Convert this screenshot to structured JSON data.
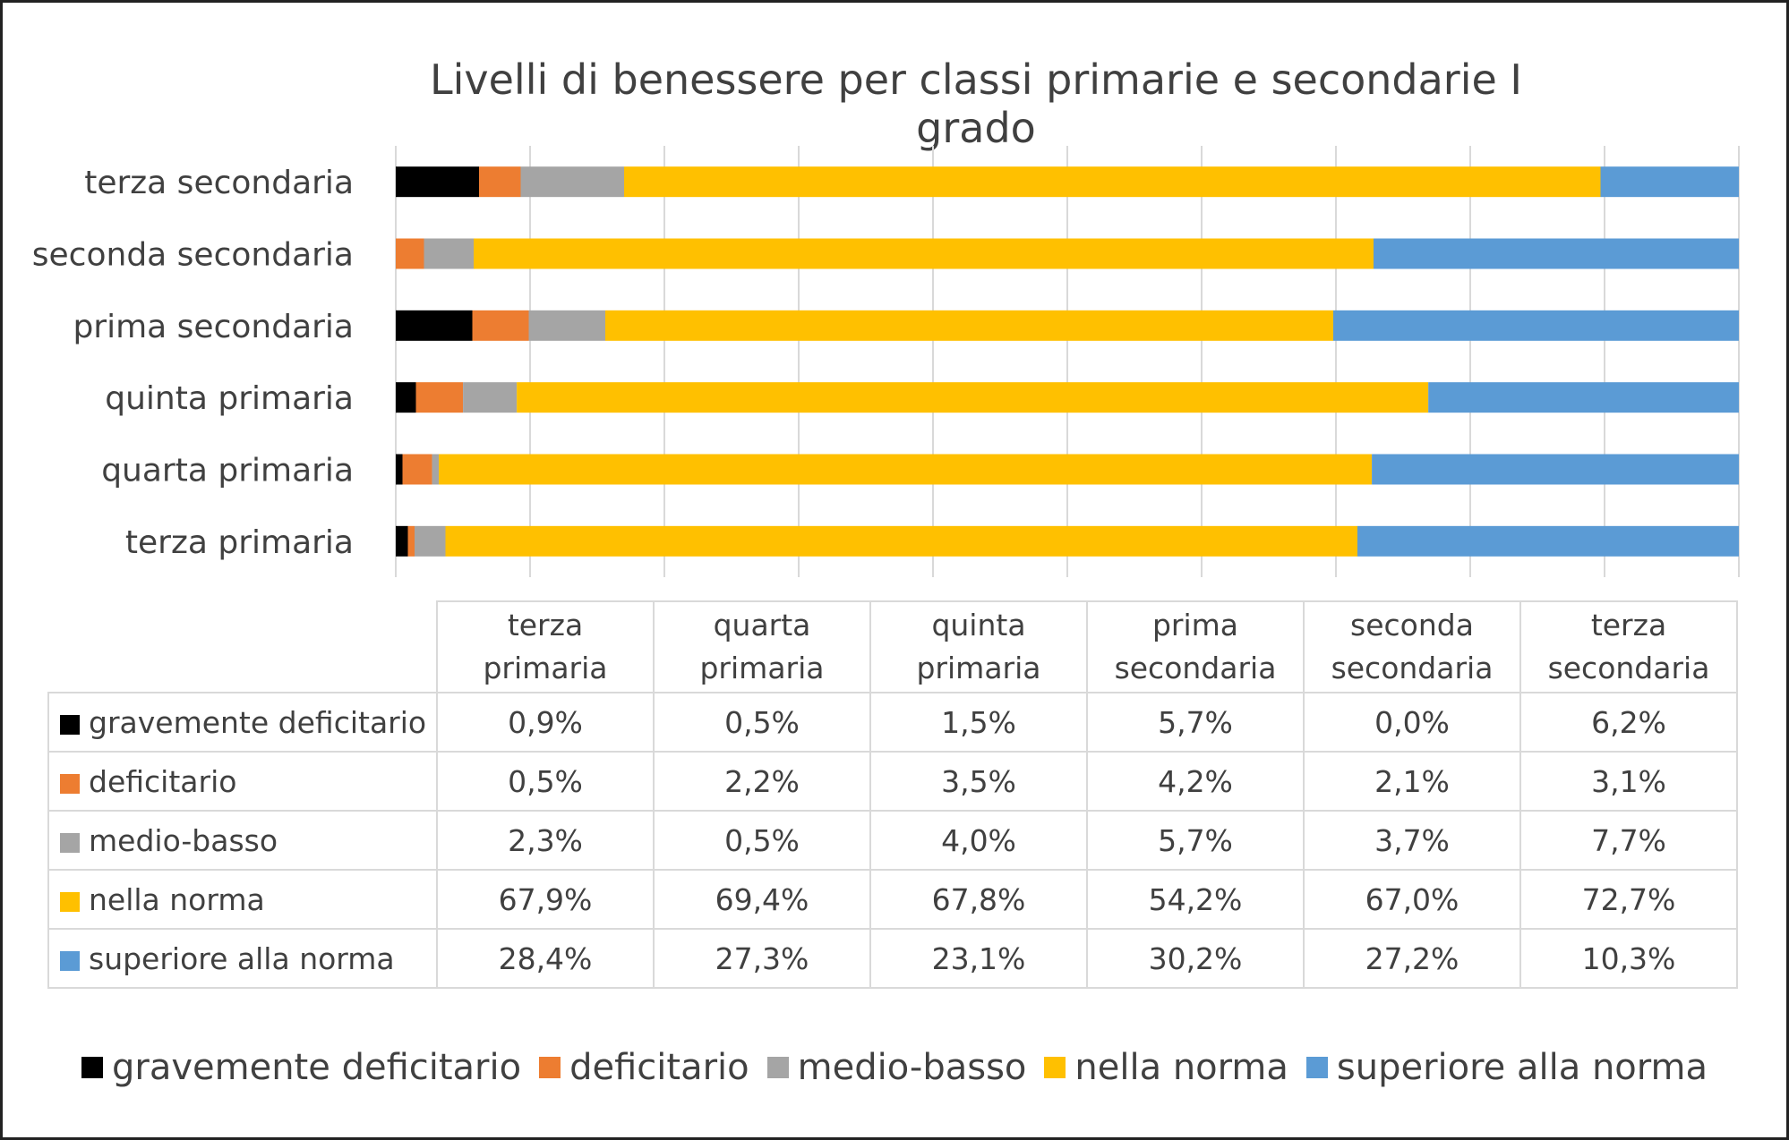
{
  "chart_data": {
    "type": "bar",
    "orientation": "horizontal",
    "stacked": "percent",
    "title": "Livelli di benessere per classi primarie e secondarie I grado",
    "categories": [
      "terza primaria",
      "quarta primaria",
      "quinta primaria",
      "prima secondaria",
      "seconda secondaria",
      "terza secondaria"
    ],
    "series": [
      {
        "name": "gravemente deficitario",
        "color": "#000000",
        "values": [
          0.9,
          0.5,
          1.5,
          5.7,
          0.0,
          6.2
        ],
        "labels": [
          "0,9%",
          "0,5%",
          "1,5%",
          "5,7%",
          "0,0%",
          "6,2%"
        ]
      },
      {
        "name": "deficitario",
        "color": "#ED7D31",
        "values": [
          0.5,
          2.2,
          3.5,
          4.2,
          2.1,
          3.1
        ],
        "labels": [
          "0,5%",
          "2,2%",
          "3,5%",
          "4,2%",
          "2,1%",
          "3,1%"
        ]
      },
      {
        "name": "medio-basso",
        "color": "#A5A5A5",
        "values": [
          2.3,
          0.5,
          4.0,
          5.7,
          3.7,
          7.7
        ],
        "labels": [
          "2,3%",
          "0,5%",
          "4,0%",
          "5,7%",
          "3,7%",
          "7,7%"
        ]
      },
      {
        "name": "nella norma",
        "color": "#FFC000",
        "values": [
          67.9,
          69.4,
          67.8,
          54.2,
          67.0,
          72.7
        ],
        "labels": [
          "67,9%",
          "69,4%",
          "67,8%",
          "54,2%",
          "67,0%",
          "72,7%"
        ]
      },
      {
        "name": "superiore alla norma",
        "color": "#5B9BD5",
        "values": [
          28.4,
          27.3,
          23.1,
          30.2,
          27.2,
          10.3
        ],
        "labels": [
          "28,4%",
          "27,3%",
          "23,1%",
          "30,2%",
          "27,2%",
          "10,3%"
        ]
      }
    ],
    "xlim": [
      0,
      100
    ],
    "grid": true,
    "legend": "bottom",
    "data_table": true
  },
  "table": {
    "headers": [
      {
        "line1": "terza",
        "line2": "primaria"
      },
      {
        "line1": "quarta",
        "line2": "primaria"
      },
      {
        "line1": "quinta",
        "line2": "primaria"
      },
      {
        "line1": "prima",
        "line2": "secondaria"
      },
      {
        "line1": "seconda",
        "line2": "secondaria"
      },
      {
        "line1": "terza",
        "line2": "secondaria"
      }
    ]
  }
}
